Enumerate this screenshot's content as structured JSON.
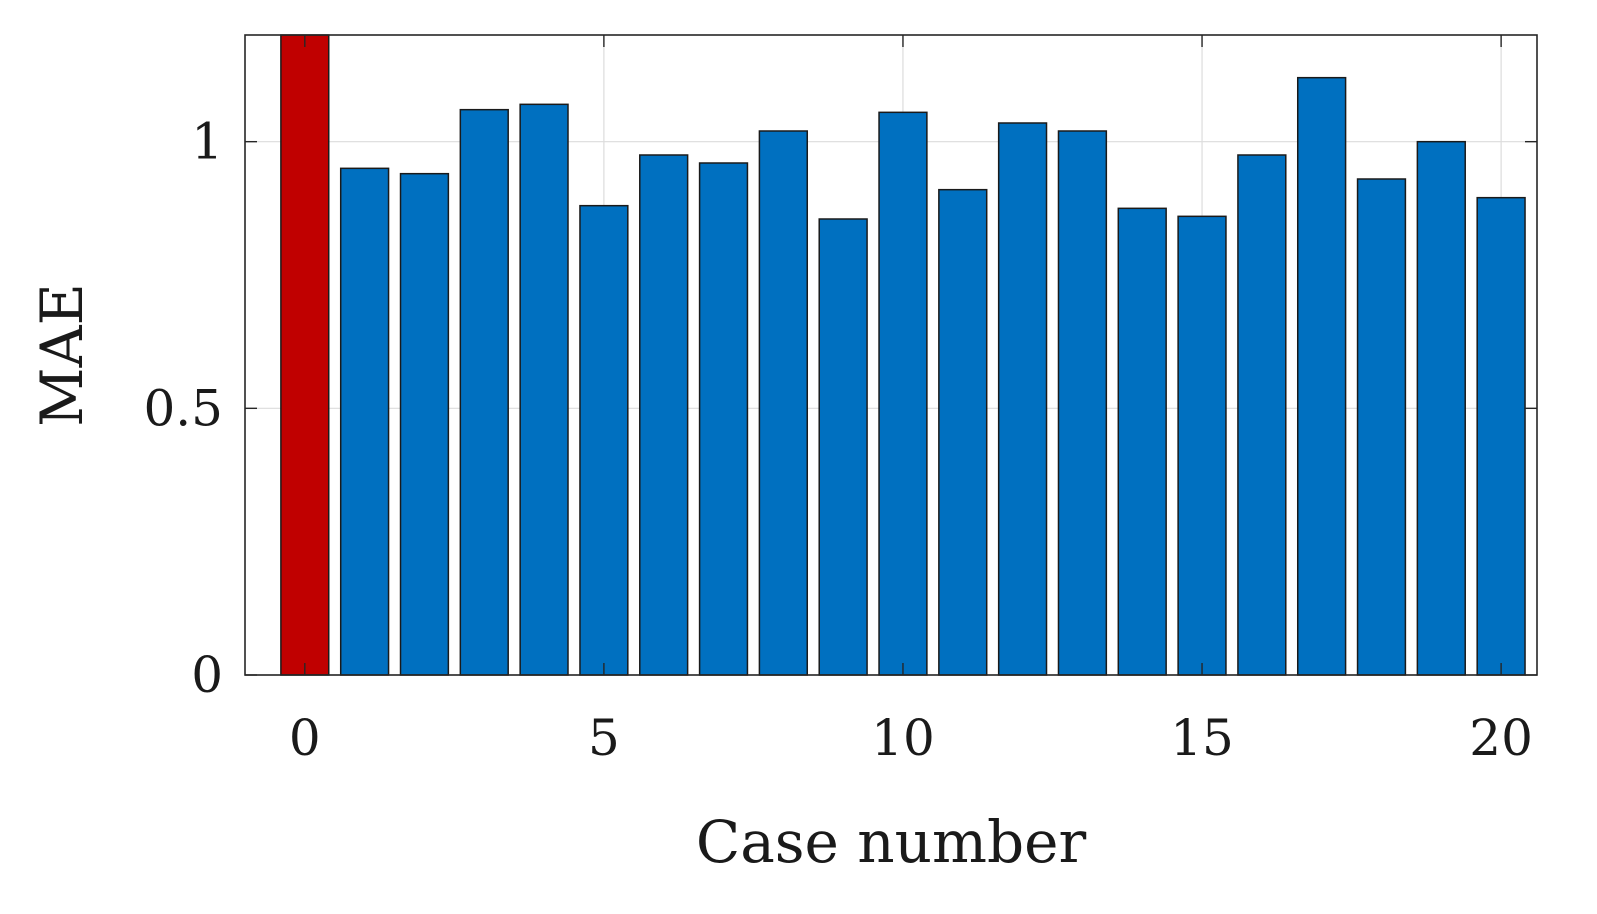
{
  "chart_data": {
    "type": "bar",
    "title": "",
    "xlabel": "Case number",
    "ylabel": "MAE",
    "x": [
      0,
      1,
      2,
      3,
      4,
      5,
      6,
      7,
      8,
      9,
      10,
      11,
      12,
      13,
      14,
      15,
      16,
      17,
      18,
      19,
      20
    ],
    "values": [
      1.22,
      0.95,
      0.94,
      1.06,
      1.07,
      0.88,
      0.975,
      0.96,
      1.02,
      0.855,
      1.055,
      0.91,
      1.035,
      1.02,
      0.875,
      0.86,
      0.975,
      1.12,
      0.93,
      1.0,
      0.895
    ],
    "bar_colors": [
      "#c00000",
      "#0070c0",
      "#0070c0",
      "#0070c0",
      "#0070c0",
      "#0070c0",
      "#0070c0",
      "#0070c0",
      "#0070c0",
      "#0070c0",
      "#0070c0",
      "#0070c0",
      "#0070c0",
      "#0070c0",
      "#0070c0",
      "#0070c0",
      "#0070c0",
      "#0070c0",
      "#0070c0",
      "#0070c0",
      "#0070c0"
    ],
    "xlim": [
      -1.0,
      20.6
    ],
    "ylim": [
      0,
      1.2
    ],
    "xticks": [
      0,
      5,
      10,
      15,
      20
    ],
    "xtick_labels": [
      "0",
      "5",
      "10",
      "15",
      "20"
    ],
    "yticks": [
      0,
      0.5,
      1
    ],
    "ytick_labels": [
      "0",
      "0.5",
      "1"
    ],
    "grid": true,
    "legend": "none"
  }
}
